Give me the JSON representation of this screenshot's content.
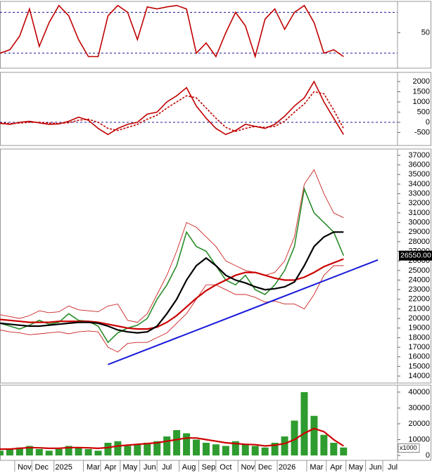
{
  "chart_data": [
    {
      "type": "line",
      "xlim": [
        0,
        81
      ],
      "ylim": [
        -2,
        96
      ],
      "yticks": [
        50
      ],
      "levels": [
        80,
        20
      ],
      "level_color": "#1a1a9c",
      "x": [
        0,
        2,
        4,
        6,
        8,
        10,
        12,
        14,
        16,
        18,
        20,
        22,
        24,
        26,
        28,
        30,
        32,
        34,
        36,
        38,
        40,
        42,
        44,
        46,
        48,
        50,
        52,
        54,
        56,
        58,
        60,
        62,
        64,
        66,
        68,
        70
      ],
      "series": [
        {
          "color": "#c00000",
          "style": "line",
          "values": [
            20,
            25,
            45,
            85,
            30,
            65,
            90,
            75,
            40,
            15,
            15,
            75,
            90,
            80,
            40,
            88,
            85,
            88,
            90,
            85,
            20,
            35,
            15,
            50,
            80,
            60,
            15,
            70,
            85,
            55,
            80,
            90,
            65,
            20,
            25,
            15
          ]
        }
      ]
    },
    {
      "type": "line",
      "xlim": [
        0,
        81
      ],
      "ylim": [
        -1140,
        2450
      ],
      "yticks": [
        -500,
        0,
        500,
        1000,
        1500,
        2000
      ],
      "levels": [
        0
      ],
      "level_color": "#1a1a9c",
      "x": [
        0,
        2,
        4,
        6,
        8,
        10,
        12,
        14,
        16,
        18,
        20,
        22,
        24,
        26,
        28,
        30,
        32,
        34,
        36,
        38,
        40,
        42,
        44,
        46,
        48,
        50,
        52,
        54,
        56,
        58,
        60,
        62,
        64,
        66,
        68,
        70
      ],
      "series": [
        {
          "color": "#c00000",
          "style": "line",
          "values": [
            -50,
            -100,
            0,
            50,
            -30,
            -100,
            -80,
            50,
            250,
            100,
            -300,
            -600,
            -300,
            -100,
            0,
            400,
            500,
            1000,
            1300,
            1700,
            800,
            200,
            -300,
            -600,
            -400,
            -100,
            -200,
            -300,
            -100,
            300,
            800,
            1200,
            2000,
            1000,
            200,
            -600
          ]
        },
        {
          "color": "#c00000",
          "style": "dashed",
          "values": [
            -30,
            -60,
            -40,
            0,
            0,
            -40,
            -60,
            -20,
            100,
            150,
            0,
            -300,
            -400,
            -250,
            -100,
            150,
            350,
            700,
            1000,
            1300,
            1200,
            700,
            200,
            -250,
            -450,
            -300,
            -200,
            -250,
            -200,
            50,
            500,
            900,
            1500,
            1400,
            600,
            -300
          ]
        }
      ]
    },
    {
      "type": "line",
      "xlim": [
        0,
        81
      ],
      "ylim": [
        13270,
        37660
      ],
      "yticks": [
        14000,
        15000,
        16000,
        17000,
        18000,
        19000,
        20000,
        21000,
        22000,
        23000,
        24000,
        25000,
        26000,
        27000,
        28000,
        29000,
        30000,
        31000,
        32000,
        33000,
        34000,
        35000,
        36000,
        37000
      ],
      "x": [
        0,
        2,
        4,
        6,
        8,
        10,
        12,
        14,
        16,
        18,
        20,
        22,
        24,
        26,
        28,
        30,
        32,
        34,
        36,
        38,
        40,
        42,
        44,
        46,
        48,
        50,
        52,
        54,
        56,
        58,
        60,
        62,
        64,
        66,
        68,
        70
      ],
      "series": [
        {
          "color": "#2a8c2a",
          "style": "line",
          "values": [
            19500,
            19200,
            18900,
            19300,
            19800,
            19400,
            19600,
            20500,
            19800,
            19700,
            19200,
            17500,
            18500,
            19000,
            19300,
            20000,
            22000,
            23500,
            25500,
            29000,
            27500,
            27000,
            25500,
            24000,
            23500,
            24500,
            23000,
            22500,
            23500,
            25000,
            27500,
            33500,
            31000,
            30000,
            29000,
            26550
          ],
          "last_value_label": "26550.00"
        },
        {
          "color": "#cc2222",
          "style": "thin",
          "values": [
            20400,
            20200,
            20000,
            20300,
            20800,
            20600,
            20700,
            21300,
            20900,
            20800,
            20700,
            21300,
            21500,
            19800,
            19600,
            20500,
            22500,
            24500,
            27000,
            30000,
            29500,
            28500,
            27500,
            26000,
            25500,
            25000,
            24800,
            24500,
            24800,
            26000,
            28500,
            34000,
            35500,
            33000,
            31000,
            30500
          ]
        },
        {
          "color": "#cc2222",
          "style": "thin",
          "values": [
            18800,
            18600,
            18500,
            18300,
            18400,
            18500,
            18600,
            18400,
            18600,
            18700,
            18600,
            17000,
            16500,
            17400,
            17500,
            17500,
            18000,
            18500,
            19500,
            20500,
            22000,
            23500,
            23500,
            23000,
            22500,
            22500,
            22200,
            21700,
            21800,
            21500,
            21500,
            21000,
            22500,
            24500,
            25500,
            25500
          ]
        },
        {
          "color": "#cc0000",
          "style": "thick",
          "values": [
            19900,
            19800,
            19700,
            19600,
            19600,
            19600,
            19700,
            19700,
            19700,
            19700,
            19600,
            19400,
            19200,
            19000,
            18900,
            18900,
            19100,
            19600,
            20300,
            21200,
            22100,
            22900,
            23500,
            24000,
            24500,
            24800,
            24800,
            24500,
            24200,
            24000,
            24000,
            24300,
            24800,
            25400,
            25800,
            26200
          ]
        },
        {
          "color": "#000000",
          "style": "thick",
          "values": [
            19500,
            19400,
            19300,
            19200,
            19200,
            19300,
            19400,
            19500,
            19600,
            19600,
            19500,
            19200,
            18800,
            18600,
            18500,
            18600,
            19200,
            20500,
            22000,
            24000,
            25500,
            26300,
            25500,
            24500,
            24000,
            23700,
            23300,
            23000,
            23100,
            23300,
            23800,
            25500,
            27500,
            28500,
            29000,
            29000
          ]
        }
      ],
      "trendline": {
        "color": "#1a1adb",
        "x": [
          22,
          77
        ],
        "values": [
          15200,
          26100
        ]
      }
    },
    {
      "type": "bar",
      "xlim": [
        0,
        81
      ],
      "ylim": [
        -3100,
        44400
      ],
      "yticks": [
        0,
        10000,
        20000,
        30000,
        40000
      ],
      "unit_label": "x1000",
      "x": [
        0,
        2,
        4,
        6,
        8,
        10,
        12,
        14,
        16,
        18,
        20,
        22,
        24,
        26,
        28,
        30,
        32,
        34,
        36,
        38,
        40,
        42,
        44,
        46,
        48,
        50,
        52,
        54,
        56,
        58,
        60,
        62,
        64,
        66,
        68,
        70
      ],
      "series": [
        {
          "color": "#2e9c2e",
          "style": "bar",
          "values": [
            3000,
            4000,
            5000,
            6000,
            4000,
            3000,
            4000,
            6000,
            5000,
            4000,
            3000,
            8000,
            9000,
            6000,
            7000,
            8000,
            9000,
            12000,
            16000,
            14000,
            10000,
            8000,
            7000,
            6000,
            9000,
            7000,
            6000,
            5000,
            8000,
            12000,
            22000,
            40000,
            25000,
            13000,
            8000,
            5000
          ]
        },
        {
          "color": "#cc0000",
          "style": "thick",
          "values": [
            4000,
            4000,
            4500,
            5000,
            4800,
            4500,
            4500,
            5000,
            5000,
            4800,
            4500,
            5000,
            6000,
            6500,
            7000,
            7500,
            8000,
            9000,
            10000,
            11000,
            11000,
            10000,
            9000,
            8000,
            7500,
            7000,
            6800,
            6000,
            6500,
            7500,
            10000,
            14000,
            17000,
            15000,
            10000,
            6000
          ]
        }
      ],
      "xticks": [
        {
          "value": 5,
          "label": "Nov"
        },
        {
          "value": 8.5,
          "label": "Dec"
        },
        {
          "value": 13,
          "label": "2025"
        },
        {
          "value": 19,
          "label": "Mar"
        },
        {
          "value": 22.5,
          "label": "Apr"
        },
        {
          "value": 26.5,
          "label": "May"
        },
        {
          "value": 30.5,
          "label": "Jun"
        },
        {
          "value": 34,
          "label": "Jul"
        },
        {
          "value": 38.5,
          "label": "Aug"
        },
        {
          "value": 42.5,
          "label": "Sep"
        },
        {
          "value": 46,
          "label": "Oct"
        },
        {
          "value": 50.5,
          "label": "Nov"
        },
        {
          "value": 54,
          "label": "Dec"
        },
        {
          "value": 58.5,
          "label": "2026"
        },
        {
          "value": 64.5,
          "label": "Mar"
        },
        {
          "value": 68.5,
          "label": "Apr"
        },
        {
          "value": 72.5,
          "label": "May"
        },
        {
          "value": 76.5,
          "label": "Jun"
        },
        {
          "value": 80,
          "label": "Jul"
        }
      ]
    }
  ]
}
